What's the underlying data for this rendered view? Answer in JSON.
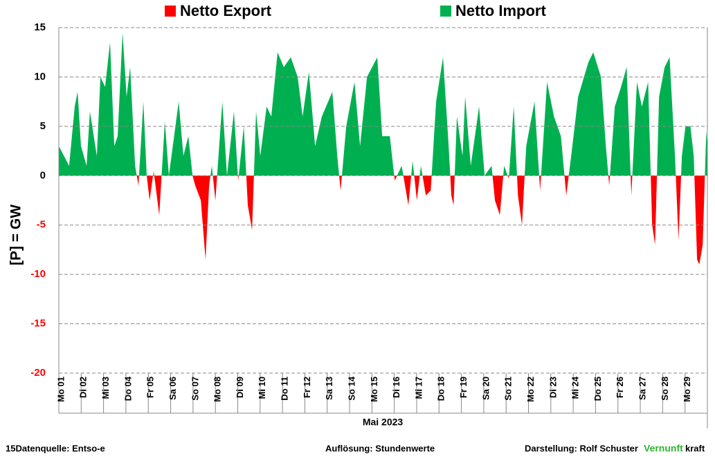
{
  "chart_data": {
    "type": "area",
    "legend": [
      {
        "name": "Netto Export",
        "color": "#ff0000"
      },
      {
        "name": "Netto Import",
        "color": "#00b050"
      }
    ],
    "positive_color": "#00b050",
    "negative_color": "#ff0000",
    "negative_tick_color": "#ff0000",
    "ylabel": "[P] = GW",
    "xlabel": "Mai 2023",
    "x": [
      1.0,
      1.46,
      1.71,
      1.84,
      1.99,
      2.24,
      2.39,
      2.7,
      2.86,
      3.07,
      3.29,
      3.48,
      3.63,
      3.85,
      4.03,
      4.19,
      4.41,
      4.56,
      4.78,
      4.93,
      5.06,
      5.24,
      5.49,
      5.74,
      5.92,
      6.36,
      6.57,
      6.79,
      6.98,
      7.1,
      7.35,
      7.56,
      7.72,
      7.84,
      8.0,
      8.31,
      8.52,
      8.83,
      9.02,
      9.27,
      9.45,
      9.64,
      9.82,
      10.01,
      10.29,
      10.5,
      10.78,
      11.06,
      11.37,
      11.68,
      11.9,
      12.18,
      12.46,
      12.76,
      13.23,
      13.45,
      13.6,
      13.85,
      14.22,
      14.47,
      14.78,
      15.24,
      15.46,
      15.8,
      16.02,
      16.33,
      16.63,
      16.82,
      17.01,
      17.19,
      17.41,
      17.63,
      17.87,
      18.18,
      18.43,
      18.55,
      18.65,
      18.8,
      19.05,
      19.17,
      19.42,
      19.79,
      20.04,
      20.35,
      20.5,
      20.72,
      20.91,
      21.12,
      21.34,
      21.53,
      21.71,
      21.9,
      22.27,
      22.52,
      22.83,
      23.14,
      23.45,
      23.69,
      23.91,
      24.22,
      24.68,
      24.9,
      25.24,
      25.46,
      25.61,
      25.86,
      26.14,
      26.39,
      26.6,
      26.85,
      27.07,
      27.35,
      27.53,
      27.66,
      27.84,
      28.09,
      28.31,
      28.55,
      28.71,
      28.86,
      29.02,
      29.24,
      29.39,
      29.54,
      29.64,
      29.79,
      29.95,
      30.0
    ],
    "values": [
      3,
      1,
      7,
      8.5,
      3,
      1,
      6.5,
      2,
      10,
      9,
      13.5,
      3,
      4,
      14.5,
      8,
      11,
      1,
      -1,
      7.5,
      0,
      -2.5,
      0.5,
      -4,
      5.5,
      0,
      7.5,
      2,
      4,
      0,
      -1,
      -2.5,
      -8.5,
      -1,
      1,
      -2.5,
      7.5,
      0,
      6.5,
      -0.5,
      5,
      -3,
      -5.5,
      6.5,
      2,
      7,
      6,
      12.5,
      11,
      12,
      10,
      6,
      10.5,
      3,
      6,
      8.5,
      2,
      -1.5,
      5,
      9.5,
      3,
      10,
      12,
      4,
      4,
      -0.5,
      1,
      -3,
      1.5,
      -2.5,
      1,
      -2,
      -1.5,
      7.5,
      12,
      3,
      -2,
      -3,
      6,
      2,
      8,
      1,
      7,
      0,
      1,
      -2.5,
      -4,
      1,
      -0.3,
      7,
      -2,
      -5,
      3,
      7.5,
      -1.5,
      9.5,
      6,
      4,
      -2,
      2,
      8,
      11.5,
      12.5,
      10,
      3,
      -1,
      7,
      9,
      11,
      -2,
      9.5,
      7,
      9.5,
      -5,
      -7,
      8,
      11,
      12,
      2,
      -6.5,
      2,
      5,
      5,
      2,
      -8.5,
      -9,
      -7,
      4.5,
      3
    ],
    "xlim": [
      1,
      30
    ],
    "xticks": [
      {
        "value": 1,
        "label": "Mo 01"
      },
      {
        "value": 2,
        "label": "Di 02"
      },
      {
        "value": 3,
        "label": "Mi 03"
      },
      {
        "value": 4,
        "label": "Do 04"
      },
      {
        "value": 5,
        "label": "Fr 05"
      },
      {
        "value": 6,
        "label": "Sa 06"
      },
      {
        "value": 7,
        "label": "So 07"
      },
      {
        "value": 8,
        "label": "Mo 08"
      },
      {
        "value": 9,
        "label": "Di 09"
      },
      {
        "value": 10,
        "label": "Mi 10"
      },
      {
        "value": 11,
        "label": "Do 11"
      },
      {
        "value": 12,
        "label": "Fr 12"
      },
      {
        "value": 13,
        "label": "Sa 13"
      },
      {
        "value": 14,
        "label": "So 14"
      },
      {
        "value": 15,
        "label": "Mo 15"
      },
      {
        "value": 16,
        "label": "Di 16"
      },
      {
        "value": 17,
        "label": "Mi 17"
      },
      {
        "value": 18,
        "label": "Do 18"
      },
      {
        "value": 19,
        "label": "Fr 19"
      },
      {
        "value": 20,
        "label": "Sa 20"
      },
      {
        "value": 21,
        "label": "So 21"
      },
      {
        "value": 22,
        "label": "Mo 22"
      },
      {
        "value": 23,
        "label": "Di 23"
      },
      {
        "value": 24,
        "label": "Mi 24"
      },
      {
        "value": 25,
        "label": "Do 25"
      },
      {
        "value": 26,
        "label": "Fr 26"
      },
      {
        "value": 27,
        "label": "Sa 27"
      },
      {
        "value": 28,
        "label": "So 28"
      },
      {
        "value": 29,
        "label": "Mo 29"
      }
    ],
    "ylim": [
      -20,
      15
    ],
    "yticks": [
      -20,
      -15,
      -10,
      -5,
      0,
      5,
      10,
      15
    ],
    "grid": true,
    "footer": {
      "source": "15Datenquelle: Entso-e",
      "resolution": "Auflösung: Stundenwerte",
      "author": "Darstellung:  Rolf Schuster",
      "brand1": "Vernunft",
      "brand2": "kraft"
    }
  }
}
